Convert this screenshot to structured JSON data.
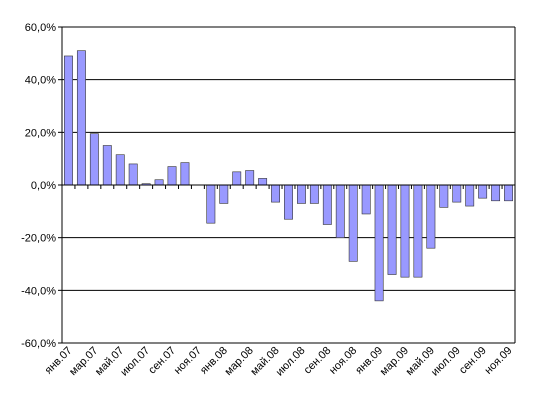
{
  "chart_data": {
    "type": "bar",
    "categories": [
      "янв.07",
      null,
      "мар.07",
      null,
      "май.07",
      null,
      "июл.07",
      null,
      "сен.07",
      null,
      "ноя.07",
      null,
      "янв.08",
      null,
      "мар.08",
      null,
      "май.08",
      null,
      "июл.08",
      null,
      "сен.08",
      null,
      "ноя.08",
      null,
      "янв.09",
      null,
      "мар.09",
      null,
      "май.09",
      null,
      "июл.09",
      null,
      "сен.09",
      null,
      "ноя.09"
    ],
    "values": [
      49,
      51,
      19.5,
      15,
      11.5,
      8,
      0.5,
      2,
      7,
      8.5,
      0,
      -14.5,
      -7,
      5,
      5.5,
      2.5,
      -6.5,
      -13,
      -7,
      -7,
      -15,
      -20,
      -29,
      -11,
      -44,
      -34,
      -35,
      -35,
      -24,
      -8.5,
      -6.5,
      -8,
      -5,
      -6,
      -6
    ],
    "color": "#9999ff",
    "ylim": [
      -60,
      60
    ],
    "yticks": [
      {
        "value": -60,
        "label": "-60,0%"
      },
      {
        "value": -40,
        "label": "-40,0%"
      },
      {
        "value": -20,
        "label": "-20,0%"
      },
      {
        "value": 0,
        "label": "0,0%"
      },
      {
        "value": 20,
        "label": "20,0%"
      },
      {
        "value": 40,
        "label": "40,0%"
      },
      {
        "value": 60,
        "label": "60,0%"
      }
    ],
    "grid": true
  }
}
